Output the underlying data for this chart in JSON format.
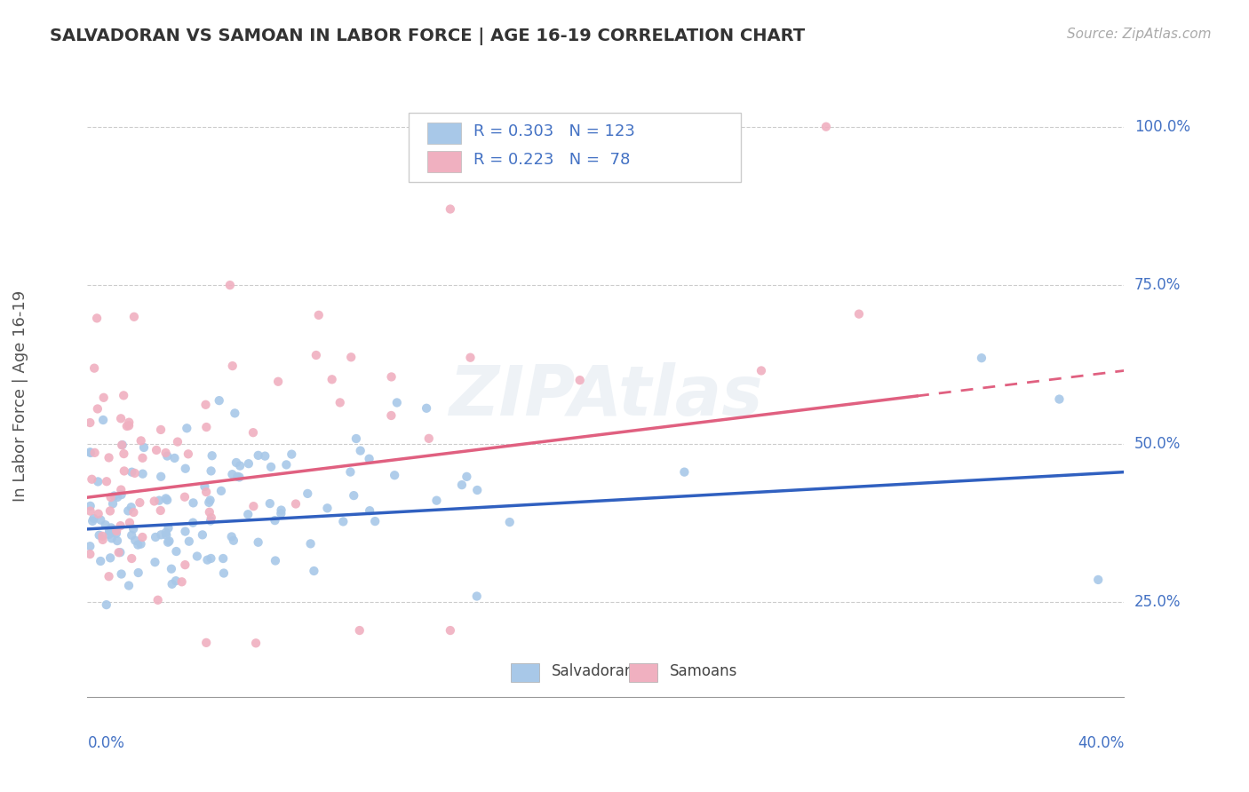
{
  "title": "SALVADORAN VS SAMOAN IN LABOR FORCE | AGE 16-19 CORRELATION CHART",
  "source": "Source: ZipAtlas.com",
  "ylabel": "In Labor Force | Age 16-19",
  "yaxis_labels": [
    "25.0%",
    "50.0%",
    "75.0%",
    "100.0%"
  ],
  "yaxis_values": [
    0.25,
    0.5,
    0.75,
    1.0
  ],
  "xmin": 0.0,
  "xmax": 0.4,
  "ymin": 0.1,
  "ymax": 1.05,
  "salvadoran_color": "#a8c8e8",
  "samoan_color": "#f0b0c0",
  "salvadoran_line_color": "#3060c0",
  "samoan_line_color": "#e06080",
  "legend_R_salvadoran": "0.303",
  "legend_N_salvadoran": "123",
  "legend_R_samoan": "0.223",
  "legend_N_samoan": "78",
  "legend_text_color": "#4472c4",
  "sal_trend_x0": 0.0,
  "sal_trend_y0": 0.365,
  "sal_trend_x1": 0.4,
  "sal_trend_y1": 0.455,
  "sam_trend_x0": 0.0,
  "sam_trend_y0": 0.415,
  "sam_trend_x1": 0.4,
  "sam_trend_y1": 0.615
}
